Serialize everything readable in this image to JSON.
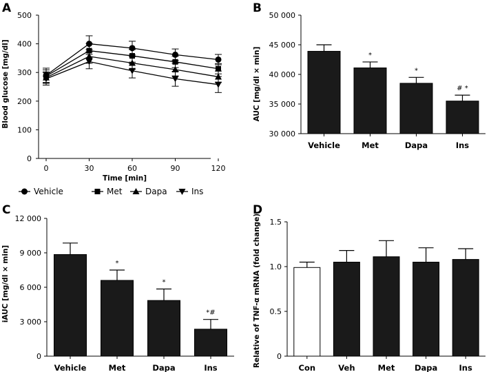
{
  "chart_data": [
    {
      "panel": "A",
      "type": "line",
      "xlabel": "Time [min]",
      "ylabel": "Blood glucose [mg/dl]",
      "xlim": [
        0,
        120
      ],
      "ylim": [
        0,
        500
      ],
      "x_ticks": [
        0,
        30,
        60,
        90,
        120
      ],
      "y_ticks": [
        0,
        100,
        200,
        300,
        400,
        500
      ],
      "x": [
        0,
        30,
        60,
        90,
        120
      ],
      "series": [
        {
          "name": "Vehicle",
          "marker": "circle",
          "values": [
            290,
            400,
            385,
            362,
            345
          ],
          "errors": [
            25,
            28,
            24,
            20,
            18
          ]
        },
        {
          "name": "Met",
          "marker": "square",
          "values": [
            287,
            376,
            358,
            337,
            313
          ],
          "errors": [
            22,
            25,
            22,
            20,
            18
          ]
        },
        {
          "name": "Dapa",
          "marker": "triangle-up",
          "values": [
            282,
            356,
            333,
            310,
            285
          ],
          "errors": [
            20,
            24,
            22,
            22,
            20
          ]
        },
        {
          "name": "Ins",
          "marker": "triangle-down",
          "values": [
            278,
            338,
            306,
            278,
            258
          ],
          "errors": [
            22,
            25,
            25,
            26,
            28
          ]
        }
      ]
    },
    {
      "panel": "B",
      "type": "bar",
      "ylabel": "AUC [mg/dl × min]",
      "ylim": [
        30000,
        50000
      ],
      "y_ticks": [
        30000,
        35000,
        40000,
        45000,
        50000
      ],
      "y_tick_labels": [
        "30 000",
        "35 000",
        "40 000",
        "45 000",
        "50 000"
      ],
      "categories": [
        "Vehicle",
        "Met",
        "Dapa",
        "Ins"
      ],
      "values": [
        43900,
        41100,
        38500,
        35500
      ],
      "errors": [
        1100,
        1000,
        1000,
        1000
      ],
      "fills": [
        "#1a1a1a",
        "#1a1a1a",
        "#1a1a1a",
        "#1a1a1a"
      ],
      "annotations": [
        "",
        "*",
        "*",
        "# *"
      ]
    },
    {
      "panel": "C",
      "type": "bar",
      "ylabel": "iAUC [mg/dl × min]",
      "ylim": [
        0,
        12000
      ],
      "y_ticks": [
        0,
        3000,
        6000,
        9000,
        12000
      ],
      "y_tick_labels": [
        "0",
        "3 000",
        "6 000",
        "9 000",
        "12 000"
      ],
      "categories": [
        "Vehicle",
        "Met",
        "Dapa",
        "Ins"
      ],
      "values": [
        8850,
        6600,
        4850,
        2350
      ],
      "errors": [
        1000,
        900,
        1000,
        850
      ],
      "fills": [
        "#1a1a1a",
        "#1a1a1a",
        "#1a1a1a",
        "#1a1a1a"
      ],
      "annotations": [
        "",
        "*",
        "*",
        "*#"
      ]
    },
    {
      "panel": "D",
      "type": "bar",
      "ylabel": "Relative of TNF-α mRNA (fold change)",
      "ylim": [
        0,
        1.5
      ],
      "y_ticks": [
        0,
        0.5,
        1.0,
        1.5
      ],
      "y_tick_labels": [
        "0",
        "0.5",
        "1.0",
        "1.5"
      ],
      "categories": [
        "Con",
        "Veh",
        "Met",
        "Dapa",
        "Ins"
      ],
      "values": [
        0.99,
        1.05,
        1.11,
        1.05,
        1.08
      ],
      "errors": [
        0.06,
        0.13,
        0.18,
        0.16,
        0.12
      ],
      "fills": [
        "#ffffff",
        "#1a1a1a",
        "#1a1a1a",
        "#1a1a1a",
        "#1a1a1a"
      ],
      "annotations": [
        "",
        "",
        "",
        "",
        ""
      ]
    }
  ],
  "colors": {
    "bar": "#1a1a1a",
    "axis": "#000000"
  }
}
